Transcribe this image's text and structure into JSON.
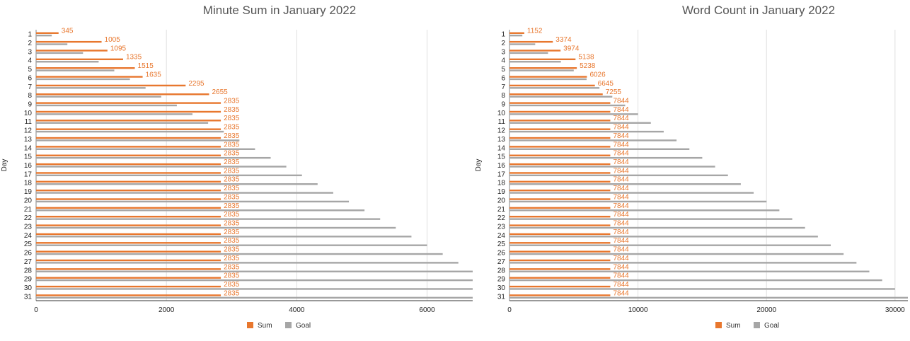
{
  "colors": {
    "sum": "#e8772e",
    "goal": "#a6a6a6",
    "grid": "#e0e0e0",
    "axis": "#333333"
  },
  "chart_data": [
    {
      "type": "bar",
      "orientation": "horizontal",
      "title": "Minute Sum in January 2022",
      "ylabel": "Day",
      "xlabel": "",
      "xlim": [
        0,
        6700
      ],
      "xticks": [
        0,
        2000,
        4000,
        6000
      ],
      "xtick_labels": [
        "0",
        "2000",
        "4000",
        "6000"
      ],
      "grid": true,
      "legend_position": "bottom",
      "categories": [
        "1",
        "2",
        "3",
        "4",
        "5",
        "6",
        "7",
        "8",
        "9",
        "10",
        "11",
        "12",
        "13",
        "14",
        "15",
        "16",
        "17",
        "18",
        "19",
        "20",
        "21",
        "22",
        "23",
        "24",
        "25",
        "26",
        "27",
        "28",
        "29",
        "30",
        "31"
      ],
      "series": [
        {
          "name": "Sum",
          "color": "#e8772e",
          "values": [
            345,
            1005,
            1095,
            1335,
            1515,
            1635,
            2295,
            2655,
            2835,
            2835,
            2835,
            2835,
            2835,
            2835,
            2835,
            2835,
            2835,
            2835,
            2835,
            2835,
            2835,
            2835,
            2835,
            2835,
            2835,
            2835,
            2835,
            2835,
            2835,
            2835,
            2835
          ],
          "data_labels": [
            "345",
            "1005",
            "1095",
            "1335",
            "1515",
            "1635",
            "2295",
            "2655",
            "2835",
            "2835",
            "2835",
            "2835",
            "2835",
            "2835",
            "2835",
            "2835",
            "2835",
            "2835",
            "2835",
            "2835",
            "2835",
            "2835",
            "2835",
            "2835",
            "2835",
            "2835",
            "2835",
            "2835",
            "2835",
            "2835",
            "2835"
          ]
        },
        {
          "name": "Goal",
          "color": "#a6a6a6",
          "values": [
            240,
            480,
            720,
            960,
            1200,
            1440,
            1680,
            1920,
            2160,
            2400,
            2640,
            2880,
            3120,
            3360,
            3600,
            3840,
            4080,
            4320,
            4560,
            4800,
            5040,
            5280,
            5520,
            5760,
            6000,
            6240,
            6480,
            6720,
            6960,
            7200,
            7440
          ]
        }
      ]
    },
    {
      "type": "bar",
      "orientation": "horizontal",
      "title": "Word Count in January 2022",
      "ylabel": "Day",
      "xlabel": "",
      "xlim": [
        0,
        31000
      ],
      "xticks": [
        0,
        10000,
        20000,
        30000
      ],
      "xtick_labels": [
        "0",
        "10000",
        "20000",
        "30000"
      ],
      "grid": true,
      "legend_position": "bottom",
      "categories": [
        "1",
        "2",
        "3",
        "4",
        "5",
        "6",
        "7",
        "8",
        "9",
        "10",
        "11",
        "12",
        "13",
        "14",
        "15",
        "16",
        "17",
        "18",
        "19",
        "20",
        "21",
        "22",
        "23",
        "24",
        "25",
        "26",
        "27",
        "28",
        "29",
        "30",
        "31"
      ],
      "series": [
        {
          "name": "Sum",
          "color": "#e8772e",
          "values": [
            1152,
            3374,
            3974,
            5138,
            5238,
            6026,
            6645,
            7255,
            7844,
            7844,
            7844,
            7844,
            7844,
            7844,
            7844,
            7844,
            7844,
            7844,
            7844,
            7844,
            7844,
            7844,
            7844,
            7844,
            7844,
            7844,
            7844,
            7844,
            7844,
            7844,
            7844
          ],
          "data_labels": [
            "1152",
            "3374",
            "3974",
            "5138",
            "5238",
            "6026",
            "6645",
            "7255",
            "7844",
            "7844",
            "7844",
            "7844",
            "7844",
            "7844",
            "7844",
            "7844",
            "7844",
            "7844",
            "7844",
            "7844",
            "7844",
            "7844",
            "7844",
            "7844",
            "7844",
            "7844",
            "7844",
            "7844",
            "7844",
            "7844",
            "7844"
          ]
        },
        {
          "name": "Goal",
          "color": "#a6a6a6",
          "values": [
            1000,
            2000,
            3000,
            4000,
            5000,
            6000,
            7000,
            8000,
            9000,
            10000,
            11000,
            12000,
            13000,
            14000,
            15000,
            16000,
            17000,
            18000,
            19000,
            20000,
            21000,
            22000,
            23000,
            24000,
            25000,
            26000,
            27000,
            28000,
            29000,
            30000,
            31000
          ]
        }
      ]
    }
  ]
}
